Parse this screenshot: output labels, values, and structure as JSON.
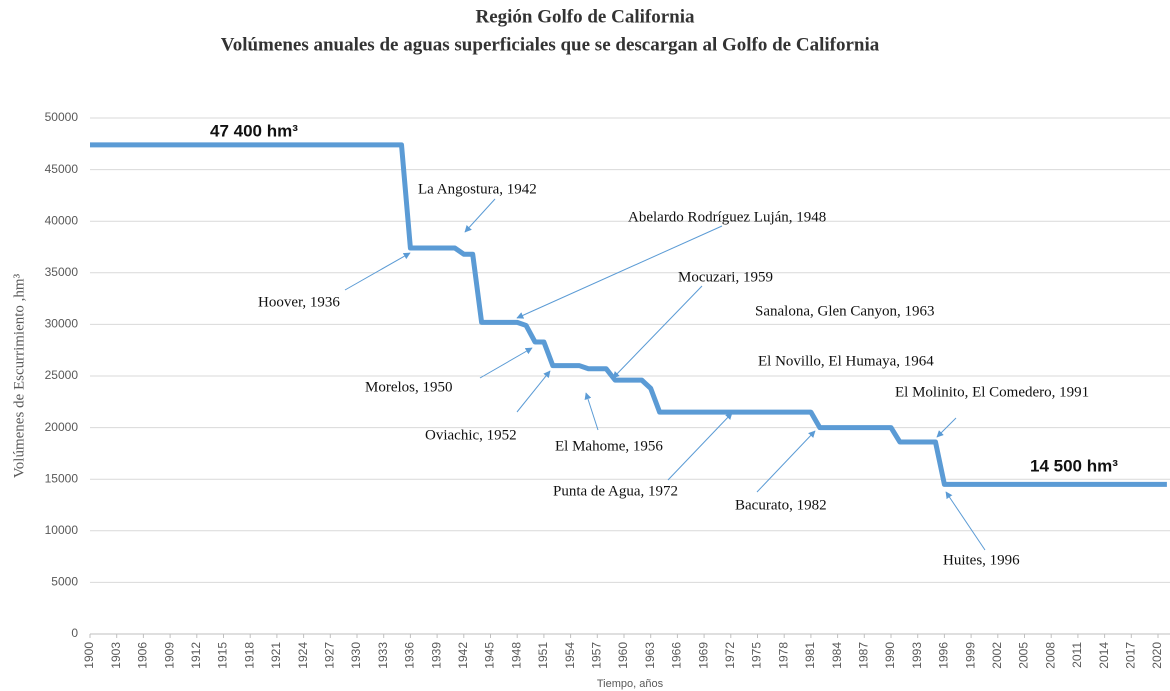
{
  "chart_data": {
    "type": "line",
    "title": "Región Golfo de California",
    "subtitle": "Volúmenes anuales de aguas superficiales que se descargan al Golfo de California",
    "y_label": "Volúmenes de Escurrimiento ,hm³",
    "x_label": "Tiempo, años",
    "x": [
      1900,
      1935,
      1936,
      1941,
      1942,
      1943,
      1944,
      1948,
      1949,
      1950,
      1951,
      1952,
      1955,
      1956,
      1958,
      1959,
      1962,
      1963,
      1964,
      1981,
      1982,
      1990,
      1991,
      1995,
      1996,
      2021
    ],
    "series": [
      {
        "name": "Volumen",
        "color": "#5b9bd5",
        "values": [
          47400,
          47400,
          37400,
          37400,
          36800,
          36800,
          30200,
          30200,
          29900,
          28300,
          28300,
          26000,
          26000,
          25700,
          25700,
          24600,
          24600,
          23800,
          21500,
          21500,
          20000,
          20000,
          18600,
          18600,
          14500,
          14500
        ]
      }
    ],
    "xlim": [
      1900,
      2021
    ],
    "ylim": [
      0,
      50000
    ],
    "xticks": [
      1900,
      1903,
      1906,
      1909,
      1912,
      1915,
      1918,
      1921,
      1924,
      1927,
      1930,
      1933,
      1936,
      1939,
      1942,
      1945,
      1948,
      1951,
      1954,
      1957,
      1960,
      1963,
      1966,
      1969,
      1972,
      1975,
      1978,
      1981,
      1984,
      1987,
      1990,
      1993,
      1996,
      1999,
      2002,
      2005,
      2008,
      2011,
      2014,
      2017,
      2020
    ],
    "yticks": [
      0,
      5000,
      10000,
      15000,
      20000,
      25000,
      30000,
      35000,
      40000,
      45000,
      50000
    ],
    "grid": true,
    "annotations": [
      "47 400 hm³",
      "14 500 hm³",
      "La Angostura, 1942",
      "Abelardo Rodríguez Luján, 1948",
      "Hoover, 1936",
      "Mocuzari, 1959",
      "Sanalona, Glen Canyon, 1963",
      "Morelos, 1950",
      "El Novillo, El Humaya, 1964",
      "El Molinito, El Comedero, 1991",
      "Oviachic, 1952",
      "El Mahome, 1956",
      "Punta de Agua, 1972",
      "Bacurato, 1982",
      "Huites, 1996"
    ]
  }
}
